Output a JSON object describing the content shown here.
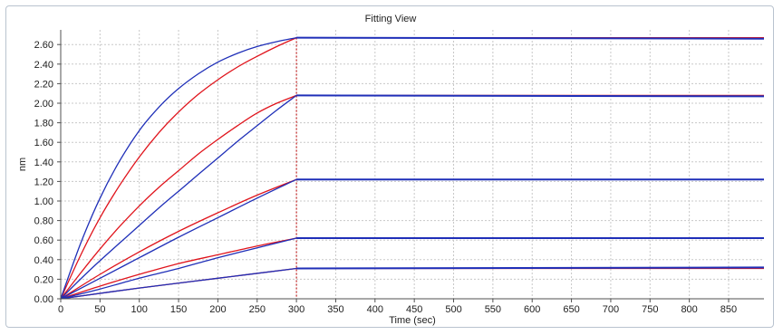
{
  "panel": {
    "title": "Fitting View"
  },
  "chart_data": {
    "type": "line",
    "title": "Fitting View",
    "xlabel": "Time (sec)",
    "ylabel": "nm",
    "xlim": [
      0,
      895
    ],
    "ylim": [
      0,
      2.75
    ],
    "xticks": [
      0,
      50,
      100,
      150,
      200,
      250,
      300,
      350,
      400,
      450,
      500,
      550,
      600,
      650,
      700,
      750,
      800,
      850
    ],
    "yticks": [
      0.0,
      0.2,
      0.4,
      0.6,
      0.8,
      1.0,
      1.2,
      1.4,
      1.6,
      1.8,
      2.0,
      2.2,
      2.4,
      2.6
    ],
    "grid": true,
    "association_end": 300,
    "colors": {
      "data": "#1f2fb8",
      "fit": "#e0141c",
      "divider": "#c00000"
    },
    "series": [
      {
        "role": "data",
        "x": [
          0,
          25,
          50,
          75,
          100,
          125,
          150,
          175,
          200,
          225,
          250,
          275,
          300,
          895
        ],
        "y": [
          0.0,
          0.56,
          1.03,
          1.41,
          1.72,
          1.96,
          2.15,
          2.3,
          2.42,
          2.51,
          2.58,
          2.63,
          2.67,
          2.66
        ]
      },
      {
        "role": "fit",
        "x": [
          0,
          25,
          50,
          75,
          100,
          125,
          150,
          175,
          200,
          225,
          250,
          275,
          300,
          895
        ],
        "y": [
          0.0,
          0.44,
          0.83,
          1.16,
          1.45,
          1.7,
          1.91,
          2.09,
          2.24,
          2.37,
          2.48,
          2.58,
          2.67,
          2.67
        ]
      },
      {
        "role": "data",
        "x": [
          0,
          25,
          50,
          75,
          100,
          125,
          150,
          175,
          200,
          225,
          250,
          275,
          300,
          895
        ],
        "y": [
          0.0,
          0.2,
          0.39,
          0.57,
          0.75,
          0.93,
          1.1,
          1.27,
          1.44,
          1.61,
          1.77,
          1.93,
          2.08,
          2.07
        ]
      },
      {
        "role": "fit",
        "x": [
          0,
          25,
          50,
          75,
          100,
          125,
          150,
          175,
          200,
          225,
          250,
          275,
          300,
          895
        ],
        "y": [
          0.0,
          0.26,
          0.51,
          0.74,
          0.95,
          1.14,
          1.31,
          1.48,
          1.63,
          1.77,
          1.9,
          2.0,
          2.08,
          2.08
        ]
      },
      {
        "role": "data",
        "x": [
          0,
          50,
          100,
          150,
          200,
          250,
          300,
          895
        ],
        "y": [
          0.0,
          0.21,
          0.42,
          0.63,
          0.83,
          1.03,
          1.22,
          1.22
        ]
      },
      {
        "role": "fit",
        "x": [
          0,
          50,
          100,
          150,
          200,
          250,
          300,
          895
        ],
        "y": [
          0.0,
          0.25,
          0.48,
          0.69,
          0.88,
          1.06,
          1.22,
          1.22
        ]
      },
      {
        "role": "data",
        "x": [
          0,
          50,
          100,
          150,
          200,
          250,
          300,
          895
        ],
        "y": [
          0.0,
          0.1,
          0.21,
          0.31,
          0.42,
          0.52,
          0.62,
          0.62
        ]
      },
      {
        "role": "fit",
        "x": [
          0,
          50,
          100,
          150,
          200,
          250,
          300,
          895
        ],
        "y": [
          0.0,
          0.13,
          0.25,
          0.36,
          0.45,
          0.54,
          0.62,
          0.62
        ]
      },
      {
        "role": "data",
        "x": [
          0,
          100,
          200,
          300,
          895
        ],
        "y": [
          0.0,
          0.11,
          0.21,
          0.31,
          0.32
        ]
      },
      {
        "role": "fit",
        "x": [
          0,
          100,
          200,
          300,
          895
        ],
        "y": [
          0.0,
          0.11,
          0.21,
          0.31,
          0.31
        ]
      }
    ]
  }
}
